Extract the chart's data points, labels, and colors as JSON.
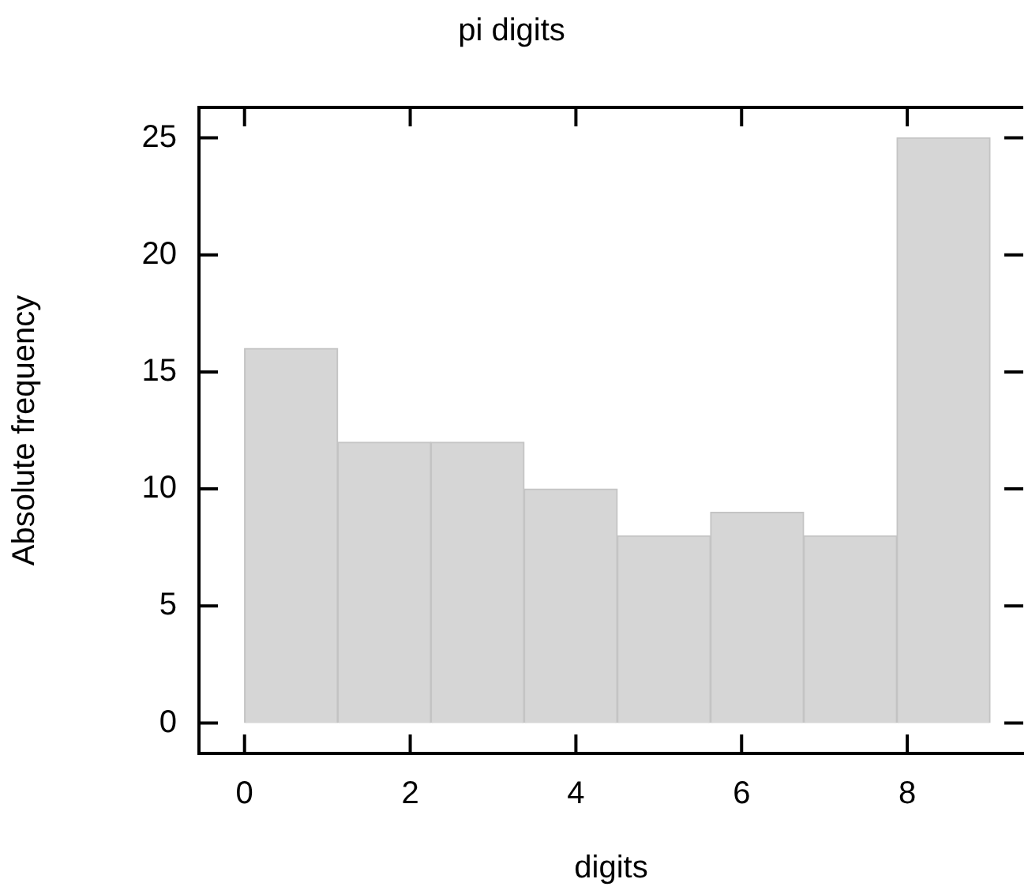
{
  "chart_data": {
    "type": "histogram",
    "title": "pi digits",
    "xlabel": "digits",
    "ylabel": "Absolute frequency",
    "bins": [
      0,
      1.125,
      2.25,
      3.375,
      4.5,
      5.625,
      6.75,
      7.875,
      9
    ],
    "values": [
      16,
      12,
      12,
      10,
      8,
      9,
      8,
      25
    ],
    "color": "#d6d6d6",
    "xlim": [
      -0.55,
      9.4
    ],
    "ylim": [
      -1.3,
      26.3
    ],
    "xticks": [
      0,
      2,
      4,
      6,
      8
    ],
    "yticks": [
      0,
      5,
      10,
      15,
      20,
      25
    ],
    "grid": false,
    "legend": false
  }
}
